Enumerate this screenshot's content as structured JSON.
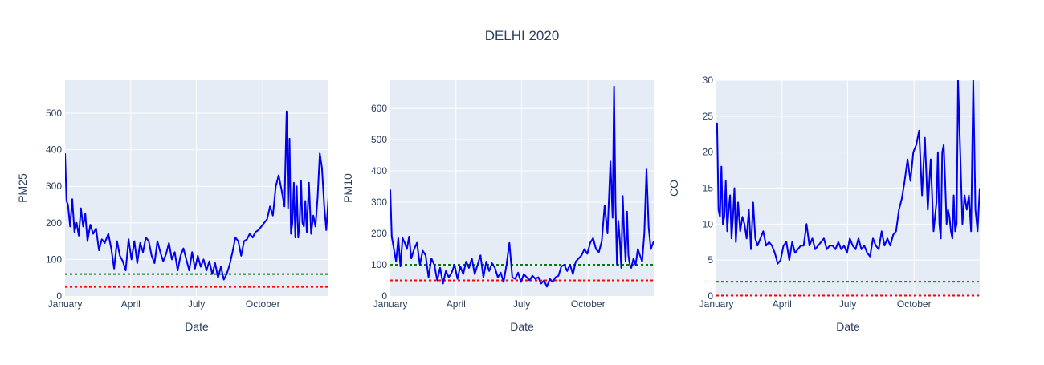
{
  "page_title": "DELHI 2020",
  "colors": {
    "series": "#0000ee",
    "who_line": "#008000",
    "ref_line": "#ff0000",
    "plot_bg": "#e5ecf6",
    "grid": "#ffffff",
    "text": "#2a3f5f"
  },
  "chart_data": [
    {
      "type": "line",
      "title": "DELHI 2020",
      "xlabel": "Date",
      "ylabel": "PM25",
      "x_tick_labels": [
        "January",
        "April",
        "July",
        "October"
      ],
      "y_ticks": [
        0,
        100,
        200,
        300,
        400,
        500
      ],
      "ylim": [
        0,
        590
      ],
      "xlim": [
        "2020-01-01",
        "2020-12-31"
      ],
      "grid": true,
      "reference_lines": [
        {
          "value": 60,
          "color": "#008000",
          "style": "dotted"
        },
        {
          "value": 25,
          "color": "#ff0000",
          "style": "dotted"
        }
      ],
      "series": [
        {
          "x": [
            "2020-01-01",
            "2020-01-03",
            "2020-01-05",
            "2020-01-08",
            "2020-01-11",
            "2020-01-14",
            "2020-01-17",
            "2020-01-20",
            "2020-01-23",
            "2020-01-26",
            "2020-01-29",
            "2020-02-01",
            "2020-02-05",
            "2020-02-09",
            "2020-02-13",
            "2020-02-17",
            "2020-02-21",
            "2020-02-25",
            "2020-03-01",
            "2020-03-05",
            "2020-03-09",
            "2020-03-13",
            "2020-03-17",
            "2020-03-21",
            "2020-03-25",
            "2020-03-29",
            "2020-04-02",
            "2020-04-06",
            "2020-04-10",
            "2020-04-14",
            "2020-04-18",
            "2020-04-22",
            "2020-04-26",
            "2020-04-30",
            "2020-05-04",
            "2020-05-08",
            "2020-05-12",
            "2020-05-16",
            "2020-05-20",
            "2020-05-24",
            "2020-05-28",
            "2020-06-01",
            "2020-06-05",
            "2020-06-09",
            "2020-06-13",
            "2020-06-17",
            "2020-06-21",
            "2020-06-25",
            "2020-06-29",
            "2020-07-03",
            "2020-07-07",
            "2020-07-11",
            "2020-07-15",
            "2020-07-19",
            "2020-07-23",
            "2020-07-27",
            "2020-07-31",
            "2020-08-04",
            "2020-08-08",
            "2020-08-12",
            "2020-08-16",
            "2020-08-20",
            "2020-08-24",
            "2020-08-28",
            "2020-09-01",
            "2020-09-05",
            "2020-09-09",
            "2020-09-13",
            "2020-09-17",
            "2020-09-21",
            "2020-09-25",
            "2020-09-29",
            "2020-10-03",
            "2020-10-07",
            "2020-10-11",
            "2020-10-15",
            "2020-10-19",
            "2020-10-23",
            "2020-10-27",
            "2020-10-31",
            "2020-11-03",
            "2020-11-05",
            "2020-11-07",
            "2020-11-09",
            "2020-11-11",
            "2020-11-13",
            "2020-11-15",
            "2020-11-17",
            "2020-11-19",
            "2020-11-21",
            "2020-11-23",
            "2020-11-25",
            "2020-11-27",
            "2020-11-29",
            "2020-12-01",
            "2020-12-04",
            "2020-12-07",
            "2020-12-10",
            "2020-12-13",
            "2020-12-16",
            "2020-12-19",
            "2020-12-22",
            "2020-12-25",
            "2020-12-28",
            "2020-12-31"
          ],
          "y": [
            390,
            260,
            250,
            190,
            265,
            175,
            200,
            165,
            240,
            190,
            225,
            150,
            195,
            170,
            185,
            125,
            155,
            145,
            170,
            130,
            75,
            150,
            110,
            95,
            70,
            155,
            100,
            150,
            90,
            145,
            120,
            160,
            150,
            110,
            90,
            150,
            120,
            95,
            115,
            145,
            100,
            120,
            70,
            110,
            130,
            100,
            70,
            120,
            75,
            110,
            80,
            100,
            70,
            95,
            60,
            90,
            50,
            80,
            45,
            60,
            85,
            120,
            160,
            150,
            110,
            150,
            155,
            170,
            160,
            175,
            180,
            190,
            200,
            210,
            245,
            220,
            300,
            330,
            290,
            245,
            505,
            240,
            430,
            170,
            200,
            310,
            160,
            300,
            160,
            200,
            315,
            200,
            190,
            260,
            175,
            310,
            170,
            220,
            190,
            270,
            390,
            350,
            250,
            180,
            270
          ]
        }
      ]
    },
    {
      "type": "line",
      "xlabel": "Date",
      "ylabel": "PM10",
      "x_tick_labels": [
        "January",
        "April",
        "July",
        "October"
      ],
      "y_ticks": [
        0,
        100,
        200,
        300,
        400,
        500,
        600
      ],
      "ylim": [
        0,
        690
      ],
      "xlim": [
        "2020-01-01",
        "2020-12-31"
      ],
      "grid": true,
      "reference_lines": [
        {
          "value": 100,
          "color": "#008000",
          "style": "dotted"
        },
        {
          "value": 50,
          "color": "#ff0000",
          "style": "dotted"
        }
      ],
      "series": [
        {
          "x": [
            "2020-01-01",
            "2020-01-03",
            "2020-01-06",
            "2020-01-09",
            "2020-01-12",
            "2020-01-15",
            "2020-01-18",
            "2020-01-21",
            "2020-01-24",
            "2020-01-27",
            "2020-01-30",
            "2020-02-03",
            "2020-02-07",
            "2020-02-11",
            "2020-02-15",
            "2020-02-19",
            "2020-02-23",
            "2020-02-27",
            "2020-03-02",
            "2020-03-06",
            "2020-03-10",
            "2020-03-14",
            "2020-03-18",
            "2020-03-22",
            "2020-03-26",
            "2020-03-30",
            "2020-04-03",
            "2020-04-07",
            "2020-04-11",
            "2020-04-15",
            "2020-04-19",
            "2020-04-23",
            "2020-04-27",
            "2020-05-01",
            "2020-05-05",
            "2020-05-09",
            "2020-05-13",
            "2020-05-17",
            "2020-05-21",
            "2020-05-25",
            "2020-05-29",
            "2020-06-02",
            "2020-06-06",
            "2020-06-10",
            "2020-06-14",
            "2020-06-18",
            "2020-06-22",
            "2020-06-26",
            "2020-06-30",
            "2020-07-04",
            "2020-07-08",
            "2020-07-12",
            "2020-07-16",
            "2020-07-20",
            "2020-07-24",
            "2020-07-28",
            "2020-08-01",
            "2020-08-05",
            "2020-08-09",
            "2020-08-13",
            "2020-08-17",
            "2020-08-21",
            "2020-08-25",
            "2020-08-29",
            "2020-09-02",
            "2020-09-06",
            "2020-09-10",
            "2020-09-14",
            "2020-09-18",
            "2020-09-22",
            "2020-09-26",
            "2020-09-30",
            "2020-10-04",
            "2020-10-08",
            "2020-10-12",
            "2020-10-16",
            "2020-10-20",
            "2020-10-24",
            "2020-10-28",
            "2020-11-01",
            "2020-11-04",
            "2020-11-06",
            "2020-11-08",
            "2020-11-10",
            "2020-11-12",
            "2020-11-14",
            "2020-11-16",
            "2020-11-18",
            "2020-11-20",
            "2020-11-22",
            "2020-11-24",
            "2020-11-26",
            "2020-11-28",
            "2020-11-30",
            "2020-12-03",
            "2020-12-06",
            "2020-12-09",
            "2020-12-12",
            "2020-12-15",
            "2020-12-18",
            "2020-12-21",
            "2020-12-24",
            "2020-12-27",
            "2020-12-31"
          ],
          "y": [
            340,
            190,
            150,
            110,
            185,
            95,
            185,
            170,
            150,
            190,
            120,
            150,
            170,
            100,
            145,
            130,
            60,
            120,
            100,
            50,
            90,
            40,
            80,
            60,
            75,
            100,
            55,
            95,
            70,
            110,
            90,
            120,
            70,
            100,
            130,
            60,
            110,
            80,
            105,
            90,
            60,
            75,
            45,
            100,
            170,
            60,
            55,
            75,
            45,
            70,
            60,
            50,
            65,
            55,
            60,
            40,
            50,
            30,
            55,
            45,
            60,
            65,
            95,
            100,
            80,
            100,
            70,
            110,
            120,
            130,
            150,
            135,
            170,
            185,
            150,
            140,
            175,
            290,
            200,
            430,
            250,
            670,
            300,
            100,
            240,
            180,
            90,
            320,
            200,
            110,
            270,
            130,
            100,
            90,
            120,
            100,
            150,
            130,
            110,
            200,
            405,
            220,
            150,
            175
          ]
        }
      ]
    },
    {
      "type": "line",
      "xlabel": "Date",
      "ylabel": "CO",
      "x_tick_labels": [
        "January",
        "April",
        "July",
        "October"
      ],
      "y_ticks": [
        0,
        5,
        10,
        15,
        20,
        25,
        30
      ],
      "ylim": [
        0,
        30
      ],
      "xlim": [
        "2020-01-01",
        "2020-12-31"
      ],
      "grid": true,
      "reference_lines": [
        {
          "value": 2,
          "color": "#008000",
          "style": "dotted"
        },
        {
          "value": 0,
          "color": "#ff0000",
          "style": "dotted"
        }
      ],
      "series": [
        {
          "x": [
            "2020-01-01",
            "2020-01-02",
            "2020-01-04",
            "2020-01-06",
            "2020-01-08",
            "2020-01-10",
            "2020-01-12",
            "2020-01-14",
            "2020-01-16",
            "2020-01-18",
            "2020-01-20",
            "2020-01-22",
            "2020-01-24",
            "2020-01-26",
            "2020-01-28",
            "2020-01-31",
            "2020-02-03",
            "2020-02-06",
            "2020-02-09",
            "2020-02-12",
            "2020-02-15",
            "2020-02-18",
            "2020-02-21",
            "2020-02-24",
            "2020-02-27",
            "2020-03-02",
            "2020-03-06",
            "2020-03-10",
            "2020-03-14",
            "2020-03-18",
            "2020-03-22",
            "2020-03-26",
            "2020-03-30",
            "2020-04-03",
            "2020-04-07",
            "2020-04-11",
            "2020-04-15",
            "2020-04-19",
            "2020-04-23",
            "2020-04-27",
            "2020-05-01",
            "2020-05-05",
            "2020-05-09",
            "2020-05-13",
            "2020-05-17",
            "2020-05-21",
            "2020-05-25",
            "2020-05-29",
            "2020-06-02",
            "2020-06-06",
            "2020-06-10",
            "2020-06-14",
            "2020-06-18",
            "2020-06-22",
            "2020-06-26",
            "2020-06-30",
            "2020-07-04",
            "2020-07-08",
            "2020-07-12",
            "2020-07-16",
            "2020-07-20",
            "2020-07-24",
            "2020-07-28",
            "2020-08-01",
            "2020-08-05",
            "2020-08-09",
            "2020-08-13",
            "2020-08-17",
            "2020-08-21",
            "2020-08-25",
            "2020-08-29",
            "2020-09-02",
            "2020-09-06",
            "2020-09-10",
            "2020-09-14",
            "2020-09-18",
            "2020-09-22",
            "2020-09-26",
            "2020-09-30",
            "2020-10-04",
            "2020-10-08",
            "2020-10-12",
            "2020-10-16",
            "2020-10-20",
            "2020-10-24",
            "2020-10-28",
            "2020-11-01",
            "2020-11-03",
            "2020-11-05",
            "2020-11-07",
            "2020-11-09",
            "2020-11-11",
            "2020-11-13",
            "2020-11-15",
            "2020-11-17",
            "2020-11-19",
            "2020-11-21",
            "2020-11-23",
            "2020-11-25",
            "2020-11-27",
            "2020-11-29",
            "2020-12-01",
            "2020-12-04",
            "2020-12-07",
            "2020-12-10",
            "2020-12-13",
            "2020-12-16",
            "2020-12-19",
            "2020-12-22",
            "2020-12-25",
            "2020-12-28",
            "2020-12-31"
          ],
          "y": [
            22.5,
            24,
            12,
            11,
            18,
            10,
            11,
            16,
            9,
            12,
            14,
            8,
            11,
            15,
            7.5,
            13,
            9,
            11,
            10,
            8,
            12,
            6.5,
            13,
            8,
            7,
            8,
            9,
            7,
            7.5,
            7,
            6,
            4.5,
            5,
            7,
            7.5,
            5,
            7.5,
            6,
            6.5,
            7,
            7,
            10,
            7,
            8,
            6.5,
            7,
            7.5,
            8,
            6.5,
            7,
            7,
            6.5,
            7.5,
            6.5,
            7,
            6,
            8,
            7,
            6.5,
            8,
            6.5,
            7,
            6,
            5.5,
            8,
            7,
            6.5,
            9,
            7,
            8,
            7,
            8.5,
            9,
            12,
            13.5,
            16,
            19,
            16,
            20,
            21,
            23,
            14,
            22,
            12,
            19,
            9,
            13,
            20,
            10,
            8,
            20,
            21,
            16,
            10,
            12,
            11,
            9,
            8,
            14,
            9,
            10,
            30,
            20,
            10,
            14,
            12,
            14,
            9,
            30,
            12,
            9,
            15
          ]
        }
      ]
    }
  ]
}
